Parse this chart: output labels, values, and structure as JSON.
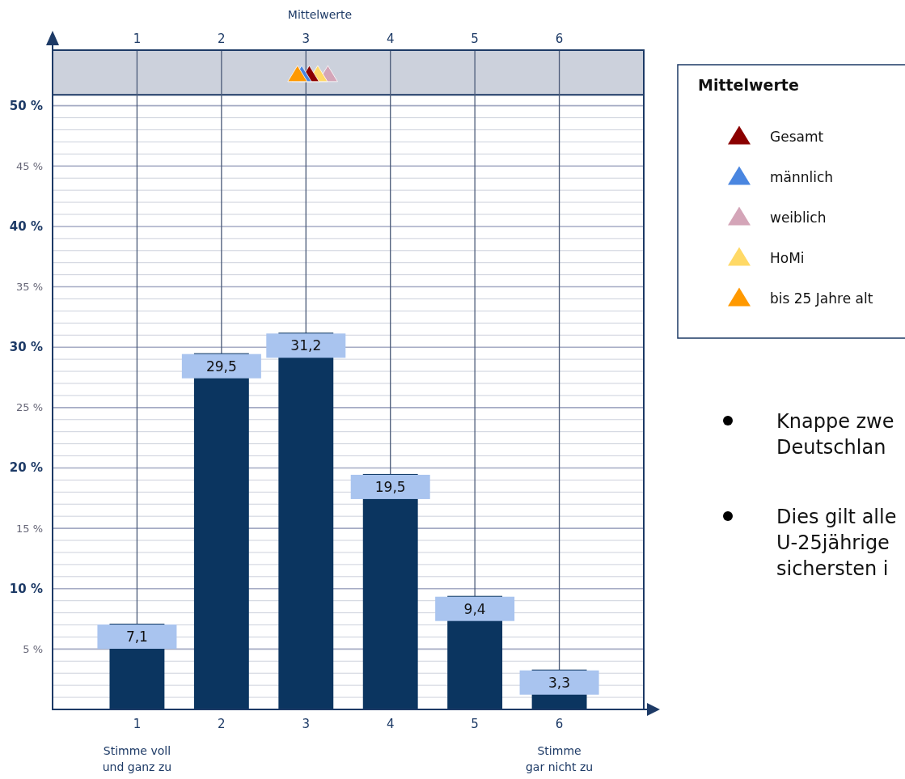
{
  "chart_data": {
    "type": "bar",
    "x": [
      1,
      2,
      3,
      4,
      5,
      6
    ],
    "xlim": [
      0,
      7
    ],
    "xticks": [
      1,
      2,
      3,
      4,
      5,
      6
    ],
    "x2lim": [
      0,
      7
    ],
    "x2ticks": [
      1,
      2,
      3,
      4,
      5,
      6
    ],
    "x2label": "Mittelwerte",
    "ylim": [
      0,
      54.6
    ],
    "yticks": [
      {
        "value": 1,
        "label": null
      },
      {
        "value": 2,
        "label": null
      },
      {
        "value": 3,
        "label": null
      },
      {
        "value": 4,
        "label": null
      },
      {
        "value": 5,
        "label": "5 %"
      },
      {
        "value": 6,
        "label": null
      },
      {
        "value": 7,
        "label": null
      },
      {
        "value": 8,
        "label": null
      },
      {
        "value": 9,
        "label": null
      },
      {
        "value": 10,
        "label": "10 %"
      },
      {
        "value": 11,
        "label": null
      },
      {
        "value": 12,
        "label": null
      },
      {
        "value": 13,
        "label": null
      },
      {
        "value": 14,
        "label": null
      },
      {
        "value": 15,
        "label": "15 %"
      },
      {
        "value": 16,
        "label": null
      },
      {
        "value": 17,
        "label": null
      },
      {
        "value": 18,
        "label": null
      },
      {
        "value": 19,
        "label": null
      },
      {
        "value": 20,
        "label": "20 %"
      },
      {
        "value": 21,
        "label": null
      },
      {
        "value": 22,
        "label": null
      },
      {
        "value": 23,
        "label": null
      },
      {
        "value": 24,
        "label": null
      },
      {
        "value": 25,
        "label": "25 %"
      },
      {
        "value": 26,
        "label": null
      },
      {
        "value": 27,
        "label": null
      },
      {
        "value": 28,
        "label": null
      },
      {
        "value": 29,
        "label": null
      },
      {
        "value": 30,
        "label": "30 %"
      },
      {
        "value": 31,
        "label": null
      },
      {
        "value": 32,
        "label": null
      },
      {
        "value": 33,
        "label": null
      },
      {
        "value": 34,
        "label": null
      },
      {
        "value": 35,
        "label": "35 %"
      },
      {
        "value": 36,
        "label": null
      },
      {
        "value": 37,
        "label": null
      },
      {
        "value": 38,
        "label": null
      },
      {
        "value": 39,
        "label": null
      },
      {
        "value": 40,
        "label": "40 %"
      },
      {
        "value": 41,
        "label": null
      },
      {
        "value": 42,
        "label": null
      },
      {
        "value": 43,
        "label": null
      },
      {
        "value": 44,
        "label": null
      },
      {
        "value": 45,
        "label": "45 %"
      },
      {
        "value": 46,
        "label": null
      },
      {
        "value": 47,
        "label": null
      },
      {
        "value": 48,
        "label": null
      },
      {
        "value": 49,
        "label": null
      },
      {
        "value": 50,
        "label": "50 %"
      }
    ],
    "grid": true,
    "legend": "right",
    "legend_title": "Mittelwerte",
    "marker": "triangle",
    "bands": [
      {
        "axis": "y",
        "from": 50.9,
        "to": 54.6,
        "color": "#ccd1dc"
      }
    ],
    "series": [
      {
        "color": "#0b3560",
        "values": [
          7.1,
          29.5,
          31.2,
          19.5,
          9.4,
          3.3
        ],
        "value_labels": [
          "7,1",
          "29,5",
          "31,2",
          "19,5",
          "9,4",
          "3,3"
        ]
      },
      {
        "type": "scatter",
        "name": "Gesamt",
        "color": "#8b0000",
        "x": [
          3.04
        ],
        "values": [
          52.6
        ]
      },
      {
        "type": "scatter",
        "name": "männlich",
        "color": "#4a86e0",
        "x": [
          2.95
        ],
        "values": [
          52.6
        ]
      },
      {
        "type": "scatter",
        "name": "weiblich",
        "color": "#d4a5b8",
        "x": [
          3.26
        ],
        "values": [
          52.6
        ]
      },
      {
        "type": "scatter",
        "name": "HoMi",
        "color": "#ffd966",
        "x": [
          3.14
        ],
        "values": [
          52.6
        ]
      },
      {
        "type": "scatter",
        "name": "bis 25 Jahre alt",
        "color": "#ff9900",
        "x": [
          2.9
        ],
        "values": [
          52.6
        ]
      }
    ],
    "annotations": [
      "Stimme voll\nund ganz zu",
      "Stimme\ngar nicht zu",
      "Knappe zwe\nDeutschlan",
      "Dies gilt alle\nU-25jährige\nsichersten i"
    ]
  }
}
